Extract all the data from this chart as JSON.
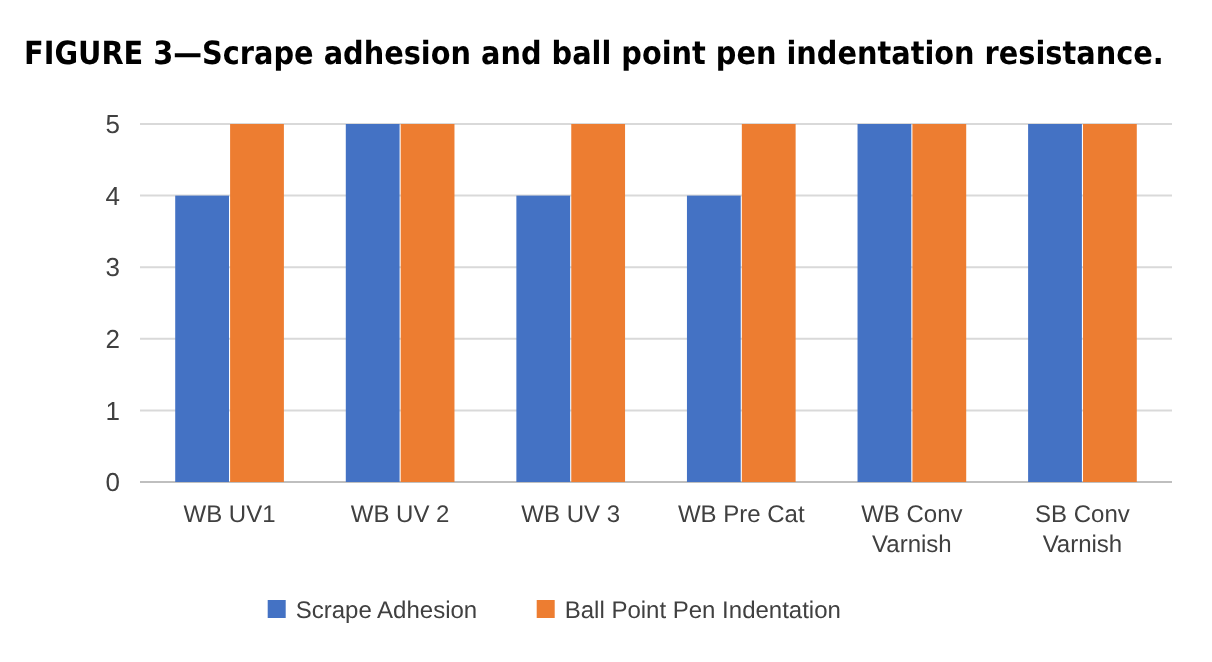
{
  "chart_data": {
    "type": "bar",
    "title": "FIGURE 3—Scrape adhesion and ball point pen indentation resistance.",
    "categories": [
      "WB UV1",
      "WB UV 2",
      "WB UV 3",
      "WB Pre Cat",
      "WB Conv Varnish",
      "SB Conv Varnish"
    ],
    "series": [
      {
        "name": "Scrape Adhesion",
        "color": "#4472c4",
        "values": [
          4,
          5,
          4,
          4,
          5,
          5
        ]
      },
      {
        "name": "Ball Point Pen Indentation",
        "color": "#ed7d31",
        "values": [
          5,
          5,
          5,
          5,
          5,
          5
        ]
      }
    ],
    "ylim": [
      0,
      5
    ],
    "yticks": [
      0,
      1,
      2,
      3,
      4,
      5
    ],
    "grid": "y",
    "legend": "bottom"
  }
}
